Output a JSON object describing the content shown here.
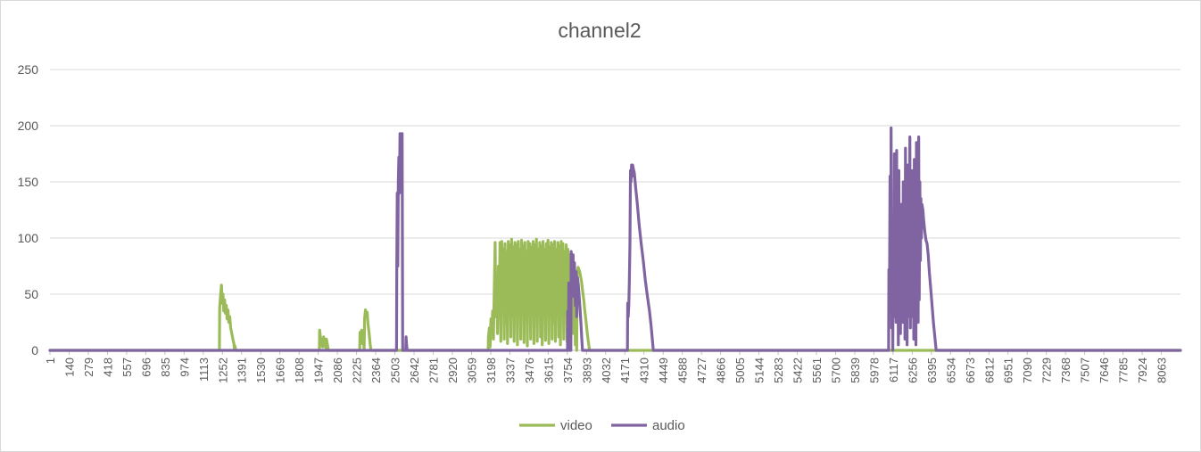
{
  "chart_data": {
    "type": "line",
    "title": "channel2",
    "xlabel": "",
    "ylabel": "",
    "ylim": [
      0,
      250
    ],
    "xlim": [
      1,
      8202
    ],
    "yticks": [
      0,
      50,
      100,
      150,
      200,
      250
    ],
    "xticks": [
      1,
      140,
      279,
      418,
      557,
      696,
      835,
      974,
      1113,
      1252,
      1391,
      1530,
      1669,
      1808,
      1947,
      2086,
      2225,
      2364,
      2503,
      2642,
      2781,
      2920,
      3059,
      3198,
      3337,
      3476,
      3615,
      3754,
      3893,
      4032,
      4171,
      4310,
      4449,
      4588,
      4727,
      4866,
      5005,
      5144,
      5283,
      5422,
      5561,
      5700,
      5839,
      5978,
      6117,
      6256,
      6395,
      6534,
      6673,
      6812,
      6951,
      7090,
      7229,
      7368,
      7507,
      7646,
      7785,
      7924,
      8063
    ],
    "grid": true,
    "legend_position": "bottom",
    "series": [
      {
        "name": "video",
        "color": "#9bbb59",
        "points": [
          [
            1,
            0
          ],
          [
            1230,
            0
          ],
          [
            1232,
            38
          ],
          [
            1238,
            48
          ],
          [
            1245,
            58
          ],
          [
            1250,
            42
          ],
          [
            1256,
            50
          ],
          [
            1262,
            35
          ],
          [
            1268,
            45
          ],
          [
            1274,
            33
          ],
          [
            1280,
            40
          ],
          [
            1286,
            28
          ],
          [
            1292,
            36
          ],
          [
            1298,
            25
          ],
          [
            1305,
            30
          ],
          [
            1312,
            20
          ],
          [
            1320,
            15
          ],
          [
            1328,
            10
          ],
          [
            1335,
            6
          ],
          [
            1340,
            0
          ],
          [
            1342,
            4
          ],
          [
            1350,
            0
          ],
          [
            1955,
            0
          ],
          [
            1957,
            18
          ],
          [
            1963,
            12
          ],
          [
            1968,
            4
          ],
          [
            1974,
            10
          ],
          [
            1980,
            3
          ],
          [
            1986,
            12
          ],
          [
            1992,
            4
          ],
          [
            1998,
            10
          ],
          [
            2004,
            0
          ],
          [
            2006,
            10
          ],
          [
            2014,
            5
          ],
          [
            2020,
            0
          ],
          [
            2248,
            0
          ],
          [
            2250,
            16
          ],
          [
            2256,
            8
          ],
          [
            2262,
            18
          ],
          [
            2268,
            6
          ],
          [
            2274,
            15
          ],
          [
            2280,
            0
          ],
          [
            2283,
            28
          ],
          [
            2290,
            36
          ],
          [
            2296,
            30
          ],
          [
            2302,
            34
          ],
          [
            2308,
            24
          ],
          [
            2316,
            15
          ],
          [
            2324,
            5
          ],
          [
            2330,
            0
          ],
          [
            3180,
            0
          ],
          [
            3182,
            12
          ],
          [
            3188,
            20
          ],
          [
            3194,
            3
          ],
          [
            3200,
            28
          ],
          [
            3206,
            18
          ],
          [
            3212,
            35
          ],
          [
            3218,
            10
          ],
          [
            3224,
            52
          ],
          [
            3230,
            96
          ],
          [
            3236,
            30
          ],
          [
            3242,
            68
          ],
          [
            3248,
            15
          ],
          [
            3254,
            75
          ],
          [
            3260,
            40
          ],
          [
            3266,
            96
          ],
          [
            3272,
            8
          ],
          [
            3278,
            97
          ],
          [
            3284,
            45
          ],
          [
            3290,
            90
          ],
          [
            3296,
            10
          ],
          [
            3302,
            95
          ],
          [
            3308,
            25
          ],
          [
            3314,
            88
          ],
          [
            3320,
            6
          ],
          [
            3326,
            97
          ],
          [
            3332,
            50
          ],
          [
            3338,
            94
          ],
          [
            3344,
            12
          ],
          [
            3350,
            99
          ],
          [
            3356,
            30
          ],
          [
            3362,
            92
          ],
          [
            3368,
            8
          ],
          [
            3374,
            96
          ],
          [
            3380,
            60
          ],
          [
            3386,
            94
          ],
          [
            3392,
            5
          ],
          [
            3398,
            97
          ],
          [
            3404,
            35
          ],
          [
            3410,
            90
          ],
          [
            3416,
            10
          ],
          [
            3422,
            98
          ],
          [
            3428,
            55
          ],
          [
            3434,
            93
          ],
          [
            3440,
            7
          ],
          [
            3446,
            96
          ],
          [
            3452,
            28
          ],
          [
            3458,
            88
          ],
          [
            3464,
            4
          ],
          [
            3470,
            97
          ],
          [
            3476,
            50
          ],
          [
            3482,
            95
          ],
          [
            3488,
            10
          ],
          [
            3494,
            92
          ],
          [
            3500,
            40
          ],
          [
            3506,
            97
          ],
          [
            3512,
            6
          ],
          [
            3518,
            94
          ],
          [
            3524,
            30
          ],
          [
            3530,
            99
          ],
          [
            3536,
            8
          ],
          [
            3542,
            90
          ],
          [
            3548,
            48
          ],
          [
            3554,
            96
          ],
          [
            3560,
            12
          ],
          [
            3566,
            93
          ],
          [
            3572,
            5
          ],
          [
            3578,
            97
          ],
          [
            3584,
            40
          ],
          [
            3590,
            90
          ],
          [
            3596,
            9
          ],
          [
            3602,
            95
          ],
          [
            3608,
            35
          ],
          [
            3614,
            98
          ],
          [
            3620,
            6
          ],
          [
            3626,
            92
          ],
          [
            3632,
            50
          ],
          [
            3638,
            96
          ],
          [
            3644,
            10
          ],
          [
            3650,
            94
          ],
          [
            3656,
            25
          ],
          [
            3662,
            97
          ],
          [
            3668,
            8
          ],
          [
            3674,
            90
          ],
          [
            3680,
            45
          ],
          [
            3686,
            96
          ],
          [
            3692,
            12
          ],
          [
            3698,
            93
          ],
          [
            3704,
            5
          ],
          [
            3710,
            97
          ],
          [
            3716,
            30
          ],
          [
            3722,
            95
          ],
          [
            3728,
            10
          ],
          [
            3734,
            88
          ],
          [
            3740,
            40
          ],
          [
            3746,
            94
          ],
          [
            3752,
            8
          ],
          [
            3758,
            90
          ],
          [
            3764,
            50
          ],
          [
            3770,
            85
          ],
          [
            3776,
            10
          ],
          [
            3782,
            80
          ],
          [
            3788,
            30
          ],
          [
            3794,
            72
          ],
          [
            3800,
            15
          ],
          [
            3806,
            60
          ],
          [
            3812,
            5
          ],
          [
            3818,
            45
          ],
          [
            3822,
            0
          ],
          [
            3826,
            68
          ],
          [
            3832,
            74
          ],
          [
            3838,
            72
          ],
          [
            3844,
            70
          ],
          [
            3850,
            66
          ],
          [
            3856,
            62
          ],
          [
            3862,
            56
          ],
          [
            3868,
            50
          ],
          [
            3874,
            44
          ],
          [
            3880,
            36
          ],
          [
            3888,
            28
          ],
          [
            3896,
            18
          ],
          [
            3904,
            10
          ],
          [
            3912,
            3
          ],
          [
            3916,
            0
          ],
          [
            8202,
            0
          ]
        ]
      },
      {
        "name": "audio",
        "color": "#8064a2",
        "points": [
          [
            1,
            0
          ],
          [
            2515,
            0
          ],
          [
            2517,
            75
          ],
          [
            2520,
            140
          ],
          [
            2524,
            75
          ],
          [
            2528,
            150
          ],
          [
            2532,
            172
          ],
          [
            2536,
            140
          ],
          [
            2540,
            193
          ],
          [
            2544,
            160
          ],
          [
            2548,
            192
          ],
          [
            2552,
            175
          ],
          [
            2556,
            193
          ],
          [
            2560,
            0
          ],
          [
            2582,
            0
          ],
          [
            2584,
            12
          ],
          [
            2588,
            5
          ],
          [
            2592,
            0
          ],
          [
            3755,
            0
          ],
          [
            3757,
            35
          ],
          [
            3761,
            0
          ],
          [
            3765,
            60
          ],
          [
            3769,
            10
          ],
          [
            3773,
            0
          ],
          [
            3780,
            0
          ],
          [
            3782,
            88
          ],
          [
            3788,
            80
          ],
          [
            3792,
            55
          ],
          [
            3796,
            85
          ],
          [
            3800,
            48
          ],
          [
            3806,
            78
          ],
          [
            3812,
            40
          ],
          [
            3818,
            70
          ],
          [
            3822,
            30
          ],
          [
            3828,
            65
          ],
          [
            3834,
            58
          ],
          [
            3840,
            48
          ],
          [
            3846,
            38
          ],
          [
            3852,
            25
          ],
          [
            3858,
            12
          ],
          [
            3864,
            0
          ],
          [
            4190,
            0
          ],
          [
            4192,
            42
          ],
          [
            4196,
            30
          ],
          [
            4200,
            40
          ],
          [
            4204,
            60
          ],
          [
            4208,
            95
          ],
          [
            4212,
            160
          ],
          [
            4216,
            150
          ],
          [
            4220,
            165
          ],
          [
            4224,
            155
          ],
          [
            4228,
            165
          ],
          [
            4232,
            162
          ],
          [
            4240,
            158
          ],
          [
            4250,
            145
          ],
          [
            4262,
            130
          ],
          [
            4275,
            112
          ],
          [
            4290,
            95
          ],
          [
            4305,
            80
          ],
          [
            4320,
            62
          ],
          [
            4335,
            48
          ],
          [
            4350,
            35
          ],
          [
            4362,
            22
          ],
          [
            4372,
            8
          ],
          [
            4378,
            0
          ],
          [
            6085,
            0
          ],
          [
            6087,
            72
          ],
          [
            6091,
            52
          ],
          [
            6095,
            155
          ],
          [
            6099,
            40
          ],
          [
            6103,
            198
          ],
          [
            6107,
            20
          ],
          [
            6111,
            100
          ],
          [
            6115,
            0
          ],
          [
            6119,
            120
          ],
          [
            6123,
            30
          ],
          [
            6127,
            175
          ],
          [
            6131,
            60
          ],
          [
            6135,
            140
          ],
          [
            6139,
            25
          ],
          [
            6143,
            178
          ],
          [
            6147,
            50
          ],
          [
            6151,
            120
          ],
          [
            6155,
            5
          ],
          [
            6159,
            160
          ],
          [
            6163,
            35
          ],
          [
            6167,
            100
          ],
          [
            6171,
            15
          ],
          [
            6175,
            130
          ],
          [
            6179,
            60
          ],
          [
            6183,
            110
          ],
          [
            6187,
            25
          ],
          [
            6191,
            150
          ],
          [
            6195,
            40
          ],
          [
            6199,
            125
          ],
          [
            6203,
            10
          ],
          [
            6207,
            180
          ],
          [
            6211,
            55
          ],
          [
            6215,
            95
          ],
          [
            6219,
            5
          ],
          [
            6223,
            165
          ],
          [
            6227,
            30
          ],
          [
            6231,
            110
          ],
          [
            6235,
            50
          ],
          [
            6239,
            190
          ],
          [
            6243,
            20
          ],
          [
            6247,
            135
          ],
          [
            6251,
            70
          ],
          [
            6255,
            160
          ],
          [
            6259,
            30
          ],
          [
            6263,
            105
          ],
          [
            6267,
            10
          ],
          [
            6271,
            170
          ],
          [
            6275,
            45
          ],
          [
            6279,
            95
          ],
          [
            6283,
            5
          ],
          [
            6287,
            185
          ],
          [
            6291,
            60
          ],
          [
            6295,
            118
          ],
          [
            6299,
            25
          ],
          [
            6303,
            190
          ],
          [
            6307,
            45
          ],
          [
            6311,
            150
          ],
          [
            6315,
            80
          ],
          [
            6319,
            135
          ],
          [
            6323,
            100
          ],
          [
            6327,
            130
          ],
          [
            6333,
            125
          ],
          [
            6340,
            115
          ],
          [
            6348,
            105
          ],
          [
            6356,
            98
          ],
          [
            6364,
            95
          ],
          [
            6372,
            85
          ],
          [
            6380,
            70
          ],
          [
            6390,
            55
          ],
          [
            6400,
            40
          ],
          [
            6410,
            25
          ],
          [
            6420,
            12
          ],
          [
            6430,
            0
          ],
          [
            8202,
            0
          ]
        ]
      }
    ]
  }
}
